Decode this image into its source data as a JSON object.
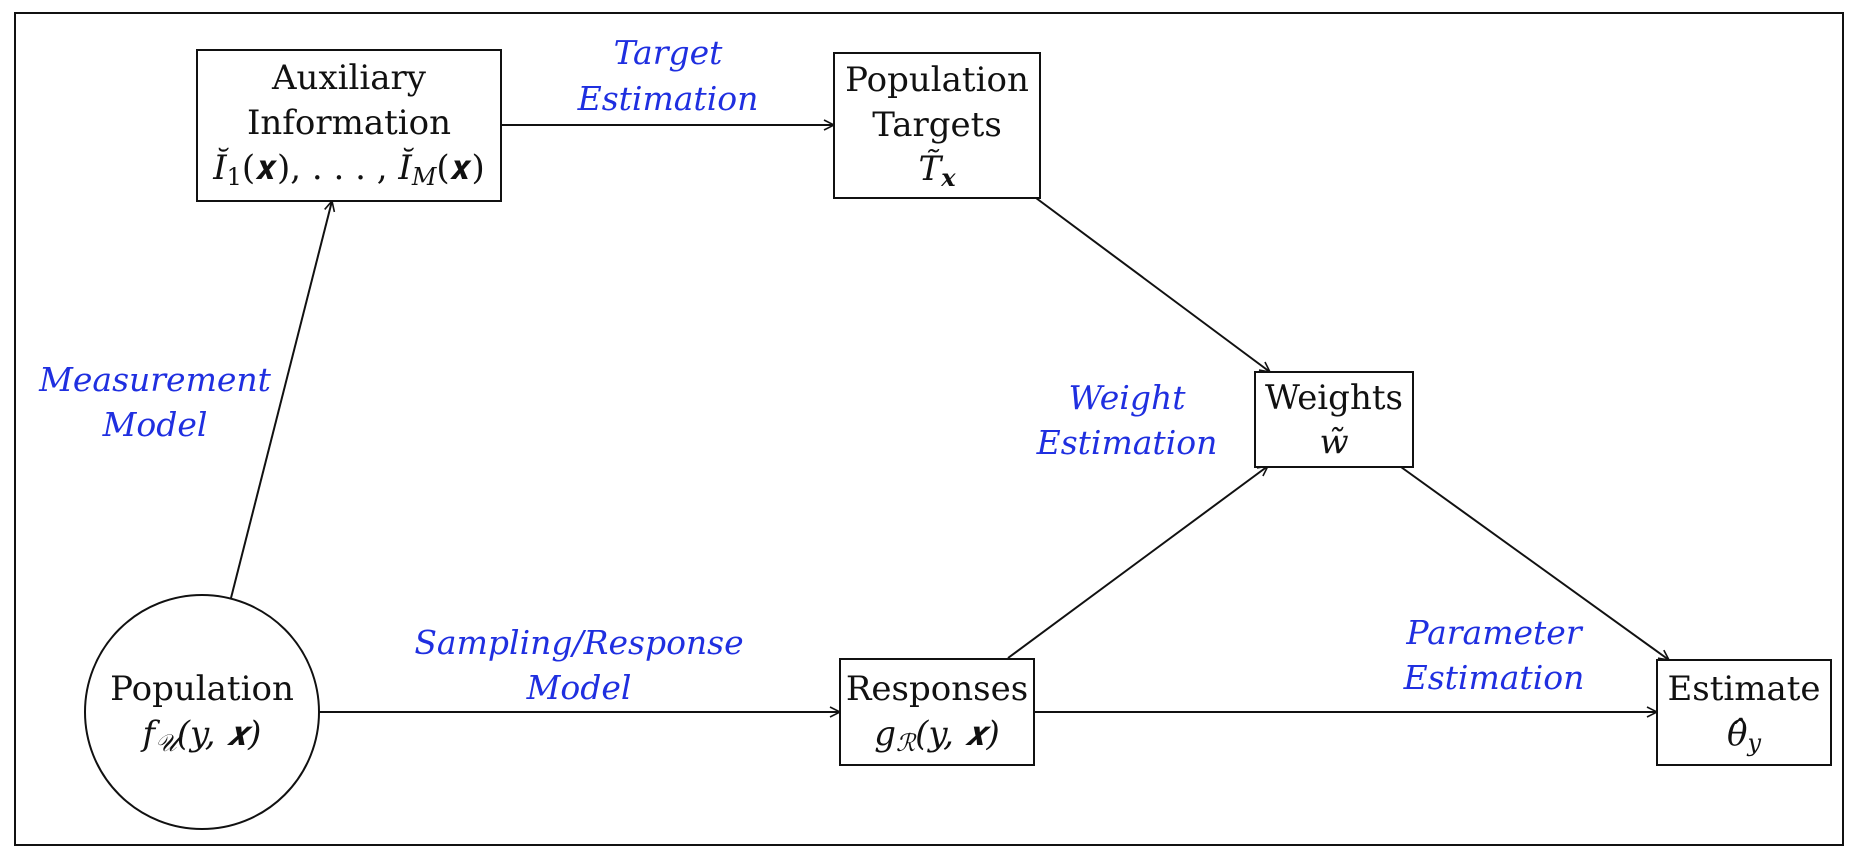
{
  "colors": {
    "ink": "#111111",
    "label": "#1f2fe0",
    "background": "#ffffff"
  },
  "nodes": {
    "auxiliary": {
      "line1": "Auxiliary",
      "line2": "Information",
      "formula": {
        "i1": "Ĭ",
        "sub1": "1",
        "mid": "(𝒙), . . . , ",
        "iM": "Ĭ",
        "subM": "M",
        "end": "(𝒙)"
      }
    },
    "targets": {
      "line1": "Population",
      "line2": "Targets",
      "formula": {
        "t": "T̃",
        "sub": "𝒙"
      }
    },
    "weights": {
      "line1": "Weights",
      "formula": {
        "w": "w̃"
      }
    },
    "population": {
      "line1": "Population",
      "formula": {
        "f": "f",
        "sub": "𝒰",
        "args": "(y, 𝒙)"
      }
    },
    "responses": {
      "line1": "Responses",
      "formula": {
        "g": "g",
        "sub": "ℛ",
        "args": "(y, 𝒙)"
      }
    },
    "estimate": {
      "line1": "Estimate",
      "formula": {
        "theta": "θ̂",
        "sub": "y"
      }
    }
  },
  "edge_labels": {
    "target_estimation": [
      "Target",
      "Estimation"
    ],
    "measurement_model": [
      "Measurement",
      "Model"
    ],
    "weight_estimation": [
      "Weight",
      "Estimation"
    ],
    "sampling_response": [
      "Sampling/Response",
      "Model"
    ],
    "parameter_estimation": [
      "Parameter",
      "Estimation"
    ]
  }
}
